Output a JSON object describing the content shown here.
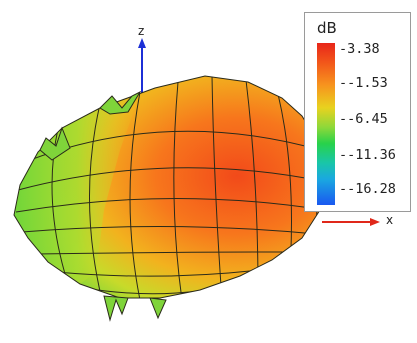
{
  "title_fragment": "",
  "axes": {
    "z_label": "z",
    "x_label": "x"
  },
  "legend": {
    "unit": "dB",
    "ticks": [
      "-3.38",
      "--1.53",
      "--6.45",
      "--11.36",
      "--16.28"
    ],
    "colors": [
      "#e8261a",
      "#f7941e",
      "#e8d21f",
      "#28d24a",
      "#19c6a8",
      "#1a58f0"
    ]
  }
}
